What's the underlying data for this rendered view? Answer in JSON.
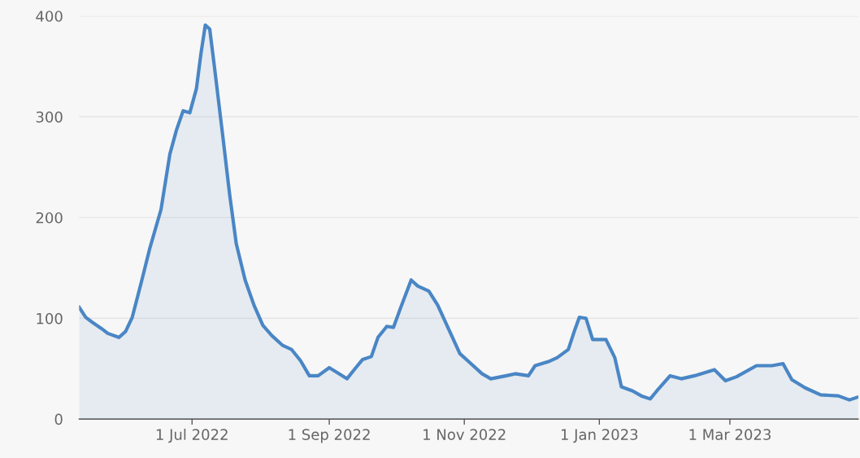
{
  "chart_data": {
    "type": "area",
    "x": [
      "2022-05-11",
      "2022-05-14",
      "2022-05-17",
      "2022-05-21",
      "2022-05-24",
      "2022-05-29",
      "2022-06-01",
      "2022-06-04",
      "2022-06-08",
      "2022-06-12",
      "2022-06-17",
      "2022-06-21",
      "2022-06-24",
      "2022-06-27",
      "2022-06-30",
      "2022-07-03",
      "2022-07-05",
      "2022-07-07",
      "2022-07-09",
      "2022-07-11",
      "2022-07-15",
      "2022-07-18",
      "2022-07-21",
      "2022-07-25",
      "2022-07-29",
      "2022-08-02",
      "2022-08-06",
      "2022-08-11",
      "2022-08-15",
      "2022-08-19",
      "2022-08-23",
      "2022-08-27",
      "2022-09-01",
      "2022-09-04",
      "2022-09-09",
      "2022-09-13",
      "2022-09-16",
      "2022-09-20",
      "2022-09-23",
      "2022-09-27",
      "2022-09-30",
      "2022-10-03",
      "2022-10-08",
      "2022-10-11",
      "2022-10-16",
      "2022-10-20",
      "2022-10-25",
      "2022-10-30",
      "2022-11-03",
      "2022-11-09",
      "2022-11-13",
      "2022-11-20",
      "2022-11-24",
      "2022-11-30",
      "2022-12-03",
      "2022-12-09",
      "2022-12-13",
      "2022-12-18",
      "2022-12-21",
      "2022-12-23",
      "2022-12-26",
      "2022-12-29",
      "2023-01-01",
      "2023-01-04",
      "2023-01-08",
      "2023-01-11",
      "2023-01-16",
      "2023-01-20",
      "2023-01-24",
      "2023-01-27",
      "2023-02-02",
      "2023-02-07",
      "2023-02-13",
      "2023-02-22",
      "2023-02-27",
      "2023-03-04",
      "2023-03-13",
      "2023-03-20",
      "2023-03-25",
      "2023-03-29",
      "2023-04-04",
      "2023-04-11",
      "2023-04-19",
      "2023-04-24",
      "2023-04-28"
    ],
    "series": [
      {
        "color": "#4a86c5",
        "values": [
          111,
          101,
          96,
          90,
          85,
          81,
          87,
          101,
          135,
          170,
          208,
          263,
          287,
          306,
          304,
          328,
          362,
          391,
          387,
          352,
          279,
          223,
          174,
          138,
          113,
          93,
          83,
          73,
          69,
          58,
          43,
          43,
          51,
          47,
          40,
          51,
          59,
          62,
          81,
          92,
          91,
          109,
          138,
          132,
          127,
          113,
          89,
          65,
          57,
          45,
          40,
          43,
          45,
          43,
          53,
          57,
          61,
          69,
          89,
          101,
          100,
          79,
          79,
          79,
          61,
          32,
          28,
          23,
          20,
          28,
          43,
          40,
          43,
          49,
          38,
          42,
          53,
          53,
          55,
          39,
          31,
          24,
          23,
          19,
          22
        ]
      }
    ],
    "xlim": [
      "2022-05-11",
      "2023-04-28"
    ],
    "xticks": [
      {
        "value": "2022-07-01",
        "label": "1 Jul 2022"
      },
      {
        "value": "2022-09-01",
        "label": "1 Sep 2022"
      },
      {
        "value": "2022-11-01",
        "label": "1 Nov 2022"
      },
      {
        "value": "2023-01-01",
        "label": "1 Jan 2023"
      },
      {
        "value": "2023-03-01",
        "label": "1 Mar 2023"
      }
    ],
    "ylim": [
      0,
      400
    ],
    "yticks": [
      0,
      100,
      200,
      300,
      400
    ],
    "grid": "y"
  }
}
